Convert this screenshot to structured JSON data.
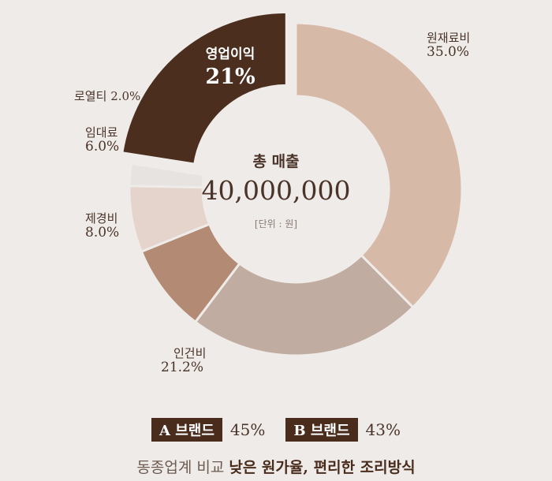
{
  "chart_data": {
    "type": "pie",
    "categories": [
      "원재료비",
      "인건비",
      "제경비",
      "임대료",
      "로열티",
      "영업이익"
    ],
    "values": [
      35.0,
      21.2,
      8.0,
      6.0,
      2.0,
      21
    ],
    "value_labels": [
      "35.0%",
      "21.2%",
      "8.0%",
      "6.0%",
      "2.0%",
      "21%"
    ],
    "highlight": "영업이익",
    "center": {
      "title": "총 매출",
      "total": "40,000,000",
      "unit": "[단위 : 원]"
    },
    "colors": {
      "원재료비": "#d7b9a8",
      "인건비": "#c0aca1",
      "제경비": "#b38a73",
      "임대료": "#e4d4cb",
      "로열티": "#e6e3e0",
      "영업이익": "#4b2e1e"
    }
  },
  "brands": [
    {
      "name": "A 브랜드",
      "value": "45%"
    },
    {
      "name": "B 브랜드",
      "value": "43%"
    }
  ],
  "tagline": {
    "normal": "동종업계 비교",
    "strong": "낮은 원가율, 편리한 조리방식"
  }
}
